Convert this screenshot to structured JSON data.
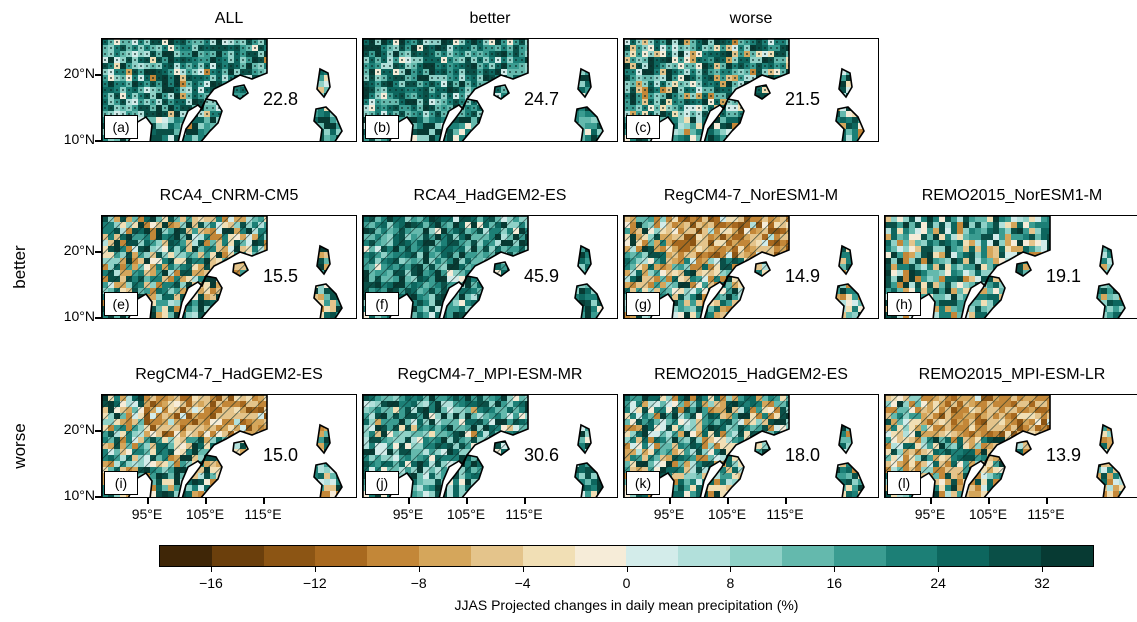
{
  "rows": [
    {
      "row_label": "",
      "panels": [
        {
          "title": "ALL",
          "letter": "(a)",
          "value": "22.8",
          "style": "stipple",
          "wet": 0.85
        },
        {
          "title": "better",
          "letter": "(b)",
          "value": "24.7",
          "style": "stipple",
          "wet": 0.9
        },
        {
          "title": "worse",
          "letter": "(c)",
          "value": "21.5",
          "style": "stipple",
          "wet": 0.75
        }
      ]
    },
    {
      "row_label": "better",
      "panels": [
        {
          "title": "RCA4_CNRM-CM5",
          "letter": "(e)",
          "value": "15.5",
          "style": "hatch",
          "wet": 0.55
        },
        {
          "title": "RCA4_HadGEM2-ES",
          "letter": "(f)",
          "value": "45.9",
          "style": "hatch",
          "wet": 0.95
        },
        {
          "title": "RegCM4-7_NorESM1-M",
          "letter": "(g)",
          "value": "14.9",
          "style": "hatch-dry",
          "wet": 0.5
        },
        {
          "title": "REMO2015_NorESM1-M",
          "letter": "(h)",
          "value": "19.1",
          "style": "plain",
          "wet": 0.7
        }
      ]
    },
    {
      "row_label": "worse",
      "panels": [
        {
          "title": "RegCM4-7_HadGEM2-ES",
          "letter": "(i)",
          "value": "15.0",
          "style": "hatch-dry",
          "wet": 0.55
        },
        {
          "title": "RegCM4-7_MPI-ESM-MR",
          "letter": "(j)",
          "value": "30.6",
          "style": "hatch",
          "wet": 0.85
        },
        {
          "title": "REMO2015_HadGEM2-ES",
          "letter": "(k)",
          "value": "18.0",
          "style": "hatch",
          "wet": 0.6
        },
        {
          "title": "REMO2015_MPI-ESM-LR",
          "letter": "(l)",
          "value": "13.9",
          "style": "hatch-dry",
          "wet": 0.45
        }
      ]
    }
  ],
  "lat_labels": [
    "20°N",
    "10°N"
  ],
  "lon_labels": [
    "95°E",
    "105°E",
    "115°E"
  ],
  "colorbar": {
    "colors": [
      "#3f2607",
      "#6b3f0c",
      "#8c5514",
      "#a8691f",
      "#c38738",
      "#d5a65b",
      "#e4c48b",
      "#f1dfb5",
      "#f6ecd8",
      "#d3ecea",
      "#b2e0db",
      "#8fd1c7",
      "#64b9ad",
      "#3a9c91",
      "#1c7f76",
      "#0d665e",
      "#0a4f47",
      "#073a33"
    ],
    "ticks": [
      "−16",
      "−12",
      "−8",
      "−4",
      "0",
      "8",
      "16",
      "24",
      "32"
    ],
    "title": "JJAS Projected changes in daily mean precipitation (%)"
  }
}
